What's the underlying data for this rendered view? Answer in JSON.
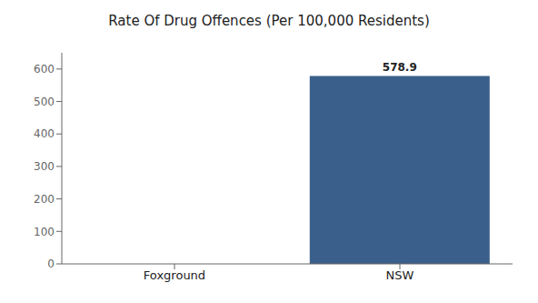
{
  "chart_data": {
    "type": "bar",
    "title": "Rate Of Drug Offences (Per 100,000 Residents)",
    "categories": [
      "Foxground",
      "NSW"
    ],
    "values": [
      0,
      578.9
    ],
    "color": "#3a5f8a",
    "ylim": [
      0,
      650
    ],
    "yticks": [
      0,
      100,
      200,
      300,
      400,
      500,
      600
    ],
    "grid": false,
    "data_labels": true
  }
}
